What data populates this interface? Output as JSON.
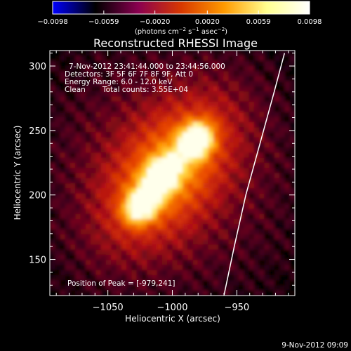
{
  "chart_data": {
    "type": "heatmap",
    "title": "Reconstructed RHESSI Image",
    "xlabel": "Heliocentric X (arcsec)",
    "ylabel": "Heliocentric Y (arcsec)",
    "xlim": [
      -1095,
      -905
    ],
    "ylim": [
      122,
      312
    ],
    "x_ticks": [
      -1050,
      -1000,
      -950
    ],
    "y_ticks": [
      150,
      200,
      250,
      300
    ],
    "x_tick_labels": [
      "−1050",
      "−1000",
      "−950"
    ],
    "y_tick_labels": [
      "150",
      "200",
      "250",
      "300"
    ],
    "colorbar": {
      "range": [
        -0.0098,
        0.0098
      ],
      "ticks": [
        -0.0098,
        -0.0059,
        -0.002,
        0.002,
        0.0059,
        0.0098
      ],
      "tick_labels": [
        "−0.0098",
        "−0.0059",
        "−0.0020",
        "0.0020",
        "0.0059",
        "0.0098"
      ],
      "label_parts": [
        "(photons cm",
        "−2",
        " s",
        "−1",
        " asec",
        "−2",
        ")"
      ],
      "colors": [
        "#0000ff",
        "#000000",
        "#8a0050",
        "#d83800",
        "#ff9a00",
        "#ffff90",
        "#ffffff"
      ]
    },
    "sources": [
      {
        "x": -982,
        "y": 242,
        "peak": 1.0
      },
      {
        "x": -1008,
        "y": 215,
        "peak": 0.9
      },
      {
        "x": -1024,
        "y": 192,
        "peak": 0.88
      }
    ],
    "peak_position": [
      -979,
      241
    ],
    "limb_points": [
      [
        -960,
        122
      ],
      [
        -952,
        160
      ],
      [
        -943,
        200
      ],
      [
        -932,
        240
      ],
      [
        -921,
        280
      ],
      [
        -913,
        310
      ]
    ],
    "annotations": {
      "time_range": "7-Nov-2012 23:41:44.000 to 23:44:56.000",
      "detectors": "Detectors: 3F 5F 6F 7F 8F 9F, Att 0",
      "energy_range": "Energy Range: 6.0 - 12.0 keV",
      "algorithm": "Clean",
      "total_counts": "Total counts: 3.55E+04",
      "peak_text": "Position of Peak = [-979,241]",
      "date_stamp": "9-Nov-2012 09:09"
    }
  }
}
